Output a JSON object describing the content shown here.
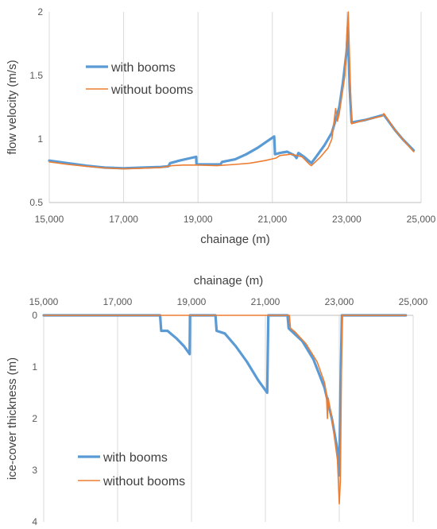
{
  "chart_data": [
    {
      "type": "line",
      "xlabel": "chainage (m)",
      "ylabel": "flow velocity (m/s)",
      "xlim": [
        15000,
        25000
      ],
      "ylim": [
        0.5,
        2
      ],
      "x_ticks": [
        15000,
        17000,
        19000,
        21000,
        23000,
        25000
      ],
      "x_tick_labels": [
        "15,000",
        "17,000",
        "19,000",
        "21,000",
        "23,000",
        "25,000"
      ],
      "y_ticks": [
        0.5,
        1,
        1.5,
        2
      ],
      "y_tick_labels": [
        "0.5",
        "1",
        "1.5",
        "2"
      ],
      "y_inverted": false,
      "x_axis_position": "bottom",
      "grid": "vertical",
      "legend_position": "center-left",
      "series": [
        {
          "name": "with booms",
          "color": "#5b9bd5",
          "points": [
            [
              15000,
              0.83
            ],
            [
              15500,
              0.81
            ],
            [
              16000,
              0.79
            ],
            [
              16500,
              0.775
            ],
            [
              17000,
              0.77
            ],
            [
              17500,
              0.775
            ],
            [
              18000,
              0.78
            ],
            [
              18200,
              0.785
            ],
            [
              18250,
              0.81
            ],
            [
              18500,
              0.83
            ],
            [
              18800,
              0.85
            ],
            [
              18950,
              0.86
            ],
            [
              18960,
              0.8
            ],
            [
              19600,
              0.8
            ],
            [
              19650,
              0.82
            ],
            [
              20000,
              0.84
            ],
            [
              20300,
              0.88
            ],
            [
              20600,
              0.93
            ],
            [
              20900,
              0.99
            ],
            [
              21050,
              1.02
            ],
            [
              21070,
              0.88
            ],
            [
              21200,
              0.89
            ],
            [
              21400,
              0.9
            ],
            [
              21600,
              0.87
            ],
            [
              21650,
              0.85
            ],
            [
              21700,
              0.89
            ],
            [
              21850,
              0.86
            ],
            [
              22050,
              0.81
            ],
            [
              22200,
              0.87
            ],
            [
              22400,
              0.95
            ],
            [
              22600,
              1.05
            ],
            [
              22800,
              1.25
            ],
            [
              22900,
              1.45
            ],
            [
              23000,
              1.7
            ],
            [
              23030,
              1.88
            ],
            [
              23080,
              1.4
            ],
            [
              23130,
              1.13
            ],
            [
              23500,
              1.15
            ],
            [
              24000,
              1.19
            ],
            [
              24300,
              1.07
            ],
            [
              24500,
              1.0
            ],
            [
              24800,
              0.91
            ]
          ]
        },
        {
          "name": "without booms",
          "color": "#ed7d31",
          "points": [
            [
              15000,
              0.82
            ],
            [
              15500,
              0.8
            ],
            [
              16000,
              0.785
            ],
            [
              16500,
              0.772
            ],
            [
              17000,
              0.765
            ],
            [
              17500,
              0.77
            ],
            [
              18000,
              0.775
            ],
            [
              18300,
              0.79
            ],
            [
              18600,
              0.795
            ],
            [
              19000,
              0.795
            ],
            [
              19500,
              0.79
            ],
            [
              20000,
              0.8
            ],
            [
              20400,
              0.81
            ],
            [
              20800,
              0.83
            ],
            [
              21100,
              0.85
            ],
            [
              21200,
              0.87
            ],
            [
              21500,
              0.88
            ],
            [
              21800,
              0.86
            ],
            [
              22000,
              0.8
            ],
            [
              22050,
              0.79
            ],
            [
              22300,
              0.86
            ],
            [
              22500,
              0.93
            ],
            [
              22600,
              1.0
            ],
            [
              22700,
              1.24
            ],
            [
              22750,
              1.14
            ],
            [
              22800,
              1.2
            ],
            [
              22950,
              1.5
            ],
            [
              23000,
              1.8
            ],
            [
              23040,
              2.0
            ],
            [
              23090,
              1.5
            ],
            [
              23130,
              1.12
            ],
            [
              23500,
              1.15
            ],
            [
              23950,
              1.18
            ],
            [
              24000,
              1.2
            ],
            [
              24300,
              1.07
            ],
            [
              24500,
              1.0
            ],
            [
              24800,
              0.9
            ]
          ]
        }
      ]
    },
    {
      "type": "line",
      "xlabel": "chainage (m)",
      "ylabel": "ice-cover thickness (m)",
      "xlim": [
        15000,
        25000
      ],
      "ylim": [
        0,
        4
      ],
      "x_ticks": [
        15000,
        17000,
        19000,
        21000,
        23000,
        25000
      ],
      "x_tick_labels": [
        "15,000",
        "17,000",
        "19,000",
        "21,000",
        "23,000",
        "25,000"
      ],
      "y_ticks": [
        0,
        1,
        2,
        3,
        4
      ],
      "y_tick_labels": [
        "0",
        "1",
        "2",
        "3",
        "4"
      ],
      "y_inverted": true,
      "x_axis_position": "top",
      "grid": "vertical",
      "legend_position": "bottom-left",
      "series": [
        {
          "name": "with booms",
          "color": "#5b9bd5",
          "points": [
            [
              15000,
              0
            ],
            [
              18150,
              0
            ],
            [
              18180,
              0.3
            ],
            [
              18350,
              0.3
            ],
            [
              18600,
              0.45
            ],
            [
              18800,
              0.6
            ],
            [
              18950,
              0.75
            ],
            [
              18960,
              0
            ],
            [
              19650,
              0
            ],
            [
              19680,
              0.3
            ],
            [
              19900,
              0.35
            ],
            [
              20200,
              0.6
            ],
            [
              20500,
              0.9
            ],
            [
              20800,
              1.25
            ],
            [
              21050,
              1.5
            ],
            [
              21080,
              0
            ],
            [
              21600,
              0
            ],
            [
              21630,
              0.25
            ],
            [
              21700,
              0.3
            ],
            [
              22000,
              0.5
            ],
            [
              22300,
              0.85
            ],
            [
              22600,
              1.4
            ],
            [
              22800,
              2.0
            ],
            [
              22950,
              2.6
            ],
            [
              23000,
              3.1
            ],
            [
              23030,
              1.5
            ],
            [
              23070,
              0
            ],
            [
              24800,
              0
            ]
          ]
        },
        {
          "name": "without booms",
          "color": "#ed7d31",
          "points": [
            [
              15000,
              0
            ],
            [
              21650,
              0
            ],
            [
              21680,
              0.25
            ],
            [
              21800,
              0.32
            ],
            [
              22100,
              0.55
            ],
            [
              22400,
              0.9
            ],
            [
              22600,
              1.3
            ],
            [
              22650,
              1.5
            ],
            [
              22680,
              2.0
            ],
            [
              22700,
              1.6
            ],
            [
              22800,
              2.0
            ],
            [
              22950,
              2.8
            ],
            [
              23000,
              3.65
            ],
            [
              23030,
              3.2
            ],
            [
              23060,
              1.0
            ],
            [
              23080,
              0
            ],
            [
              24800,
              0
            ]
          ]
        }
      ]
    }
  ]
}
